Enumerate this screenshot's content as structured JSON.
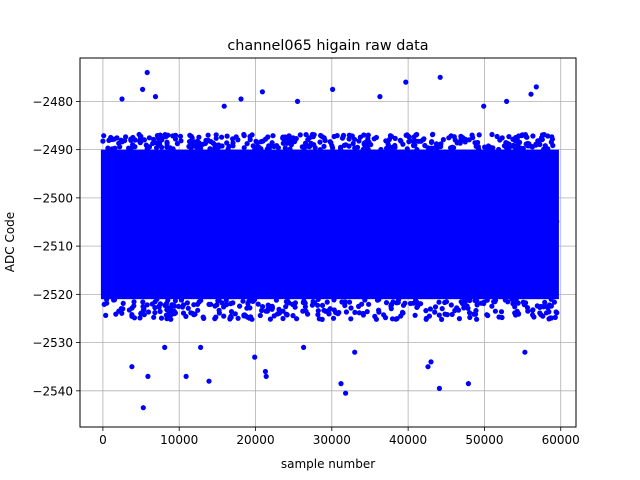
{
  "chart_data": {
    "type": "scatter",
    "title": "channel065 higain raw data",
    "xlabel": "sample number",
    "ylabel": "ADC Code",
    "xlim": [
      -3000,
      62000
    ],
    "ylim": [
      -2547.5,
      -2471
    ],
    "xticks": [
      0,
      10000,
      20000,
      30000,
      40000,
      50000,
      60000
    ],
    "xtick_labels": [
      "0",
      "10000",
      "20000",
      "30000",
      "40000",
      "50000",
      "60000"
    ],
    "yticks": [
      -2540,
      -2530,
      -2520,
      -2510,
      -2500,
      -2490,
      -2480
    ],
    "ytick_labels": [
      "−2540",
      "−2530",
      "−2520",
      "−2510",
      "−2500",
      "−2490",
      "−2480"
    ],
    "grid": true,
    "legend": "none",
    "marker_color": "#0000ff",
    "series": [
      {
        "name": "",
        "x_range": [
          0,
          59500
        ],
        "core_band": [
          -2521,
          -2490
        ],
        "center": -2506,
        "outliers": [
          {
            "x": 5300,
            "y": -2543.5
          },
          {
            "x": 5800,
            "y": -2474
          },
          {
            "x": 39700,
            "y": -2476
          },
          {
            "x": 44200,
            "y": -2475
          },
          {
            "x": 31800,
            "y": -2540.5
          },
          {
            "x": 44100,
            "y": -2539.5
          },
          {
            "x": 31200,
            "y": -2538.5
          },
          {
            "x": 47900,
            "y": -2538.5
          },
          {
            "x": 13900,
            "y": -2538
          },
          {
            "x": 10900,
            "y": -2537
          },
          {
            "x": 21400,
            "y": -2537
          },
          {
            "x": 21300,
            "y": -2536
          },
          {
            "x": 5900,
            "y": -2537
          },
          {
            "x": 3800,
            "y": -2535
          },
          {
            "x": 42600,
            "y": -2535
          },
          {
            "x": 43000,
            "y": -2534
          },
          {
            "x": 2500,
            "y": -2479.5
          },
          {
            "x": 6900,
            "y": -2479
          },
          {
            "x": 18100,
            "y": -2479.5
          },
          {
            "x": 20900,
            "y": -2478
          },
          {
            "x": 30100,
            "y": -2477.5
          },
          {
            "x": 36300,
            "y": -2479
          },
          {
            "x": 52900,
            "y": -2480
          },
          {
            "x": 56100,
            "y": -2478.5
          },
          {
            "x": 56800,
            "y": -2477
          },
          {
            "x": 5200,
            "y": -2477.5
          },
          {
            "x": 15900,
            "y": -2481
          },
          {
            "x": 25500,
            "y": -2480
          },
          {
            "x": 49900,
            "y": -2481
          },
          {
            "x": 12800,
            "y": -2531
          },
          {
            "x": 19900,
            "y": -2533
          },
          {
            "x": 26300,
            "y": -2531
          },
          {
            "x": 33000,
            "y": -2532
          },
          {
            "x": 55300,
            "y": -2532
          },
          {
            "x": 8100,
            "y": -2531
          }
        ]
      }
    ]
  }
}
